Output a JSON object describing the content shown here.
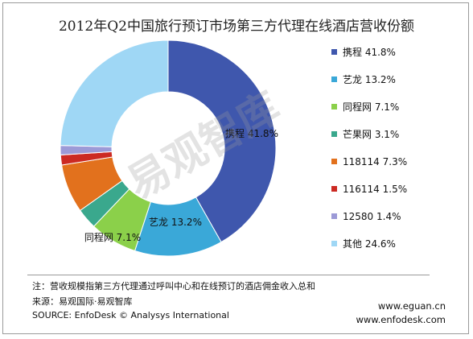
{
  "chart_data": {
    "type": "pie",
    "donut": true,
    "title": "2012年Q2中国旅行预订市场第三方代理在线酒店营收份额",
    "unit": "%",
    "legend_position": "right",
    "slices": [
      {
        "name": "携程",
        "value": 41.8,
        "legend": "携程 41.8%",
        "label": "携程 41.8%",
        "color": "#3f57ad"
      },
      {
        "name": "艺龙",
        "value": 13.2,
        "legend": "艺龙  13.2%",
        "label": "艺龙  13.2%",
        "color": "#3aa8d8"
      },
      {
        "name": "同程网",
        "value": 7.1,
        "legend": "同程网  7.1%",
        "label": "同程网  7.1%",
        "color": "#8bd04a"
      },
      {
        "name": "芒果网",
        "value": 3.1,
        "legend": "芒果网  3.1%",
        "label": "",
        "color": "#3aa88d"
      },
      {
        "name": "118114",
        "value": 7.3,
        "legend": "118114  7.3%",
        "label": "",
        "color": "#e2711d"
      },
      {
        "name": "116114",
        "value": 1.5,
        "legend": "116114  1.5%",
        "label": "",
        "color": "#cc2a23"
      },
      {
        "name": "12580",
        "value": 1.4,
        "legend": "12580  1.4%",
        "label": "",
        "color": "#9c9ad7"
      },
      {
        "name": "其他",
        "value": 24.6,
        "legend": "其他  24.6%",
        "label": "",
        "color": "#9fd7f5"
      }
    ]
  },
  "watermark": "易观智库",
  "footer": {
    "note": "注：营收规模指第三方代理通过呼叫中心和在线预订的酒店佣金收入总和",
    "source_cn": "来源：易观国际·易观智库",
    "source_en": "SOURCE: EnfoDesk © Analysys International",
    "site1": "www.eguan.cn",
    "site2": "www.enfodesk.com"
  }
}
